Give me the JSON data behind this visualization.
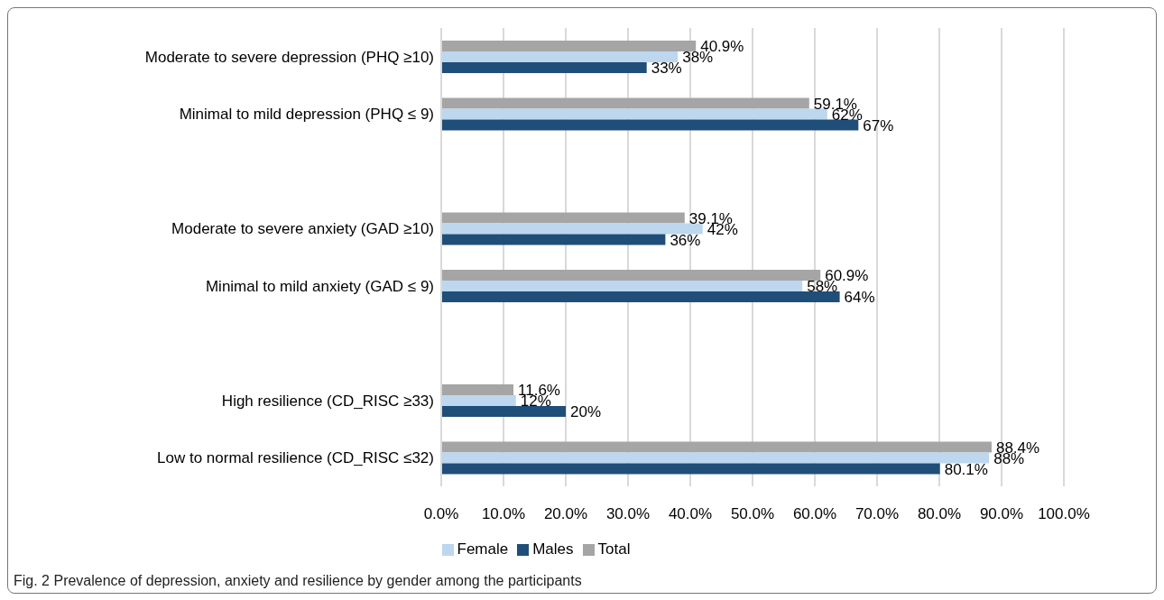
{
  "chart_data": {
    "type": "bar",
    "orientation": "horizontal",
    "categories": [
      "Moderate to severe depression (PHQ ≥10)",
      "Minimal to mild depression (PHQ ≤ 9)",
      null,
      "Moderate to severe anxiety (GAD ≥10)",
      "Minimal to mild anxiety (GAD ≤ 9)",
      null,
      "High resilience (CD_RISC ≥33)",
      "Low to normal resilience (CD_RISC ≤32)"
    ],
    "series": [
      {
        "name": "Total",
        "color": "#a5a5a5",
        "values": [
          40.9,
          59.1,
          null,
          39.1,
          60.9,
          null,
          11.6,
          88.4
        ],
        "value_labels": [
          "40.9%",
          "59.1%",
          null,
          "39.1%",
          "60.9%",
          null,
          "11.6%",
          "88.4%"
        ]
      },
      {
        "name": "Female",
        "color": "#bdd7ee",
        "values": [
          38,
          62,
          null,
          42,
          58,
          null,
          12,
          88
        ],
        "value_labels": [
          "38%",
          "62%",
          null,
          "42%",
          "58%",
          null,
          "12%",
          "88%"
        ]
      },
      {
        "name": "Males",
        "color": "#1f4e79",
        "values": [
          33,
          67,
          null,
          36,
          64,
          null,
          20,
          80.1
        ],
        "value_labels": [
          "33%",
          "67%",
          null,
          "36%",
          "64%",
          null,
          "20%",
          "80.1%"
        ]
      }
    ],
    "xlim": [
      0,
      100
    ],
    "xticks": [
      {
        "value": 0,
        "label": "0.0%"
      },
      {
        "value": 10,
        "label": "10.0%"
      },
      {
        "value": 20,
        "label": "20.0%"
      },
      {
        "value": 30,
        "label": "30.0%"
      },
      {
        "value": 40,
        "label": "40.0%"
      },
      {
        "value": 50,
        "label": "50.0%"
      },
      {
        "value": 60,
        "label": "60.0%"
      },
      {
        "value": 70,
        "label": "70.0%"
      },
      {
        "value": 80,
        "label": "80.0%"
      },
      {
        "value": 90,
        "label": "90.0%"
      },
      {
        "value": 100,
        "label": "100.0%"
      }
    ],
    "grid": "x",
    "legend": "bottom",
    "annotations": [
      "Fig. 2  Prevalence of depression, anxiety and resilience by gender among the participants"
    ]
  }
}
